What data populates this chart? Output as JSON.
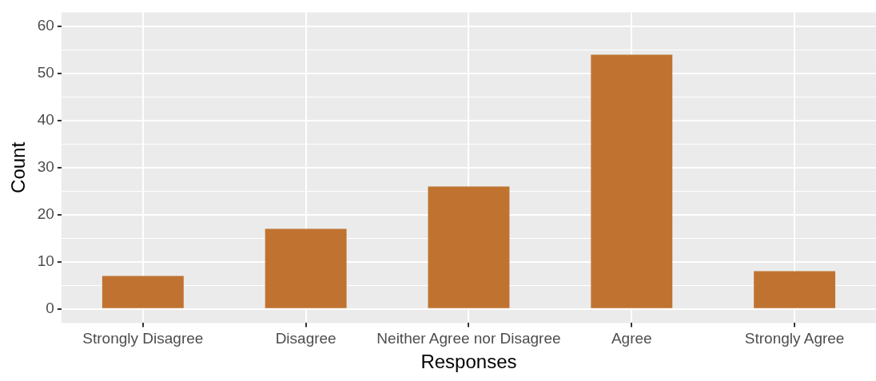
{
  "chart_data": {
    "type": "bar",
    "xlabel": "Responses",
    "ylabel": "Count",
    "categories": [
      "Strongly Disagree",
      "Disagree",
      "Neither Agree nor Disagree",
      "Agree",
      "Strongly Agree"
    ],
    "values": [
      7,
      17,
      26,
      54,
      8
    ],
    "color": "#c07330",
    "ylim": [
      -3,
      63
    ],
    "yticks": [
      0,
      {
        "value": 5,
        "label": null
      },
      10,
      {
        "value": 15,
        "label": null
      },
      20,
      {
        "value": 25,
        "label": null
      },
      30,
      {
        "value": 35,
        "label": null
      },
      40,
      {
        "value": 45,
        "label": null
      },
      50,
      {
        "value": 55,
        "label": null
      },
      60
    ],
    "grid": true,
    "legend": false
  }
}
